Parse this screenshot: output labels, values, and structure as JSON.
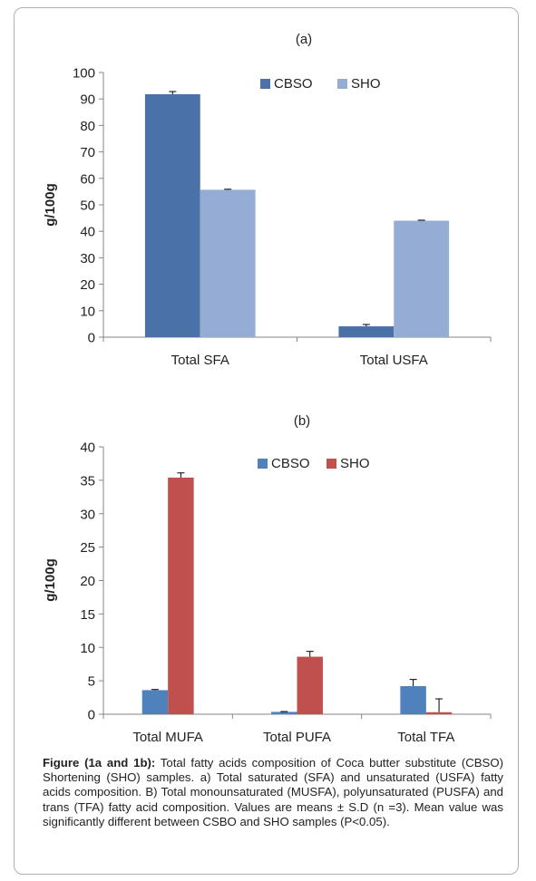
{
  "chart_data": [
    {
      "type": "bar",
      "title": "(a)",
      "ylabel": "g/100g",
      "xlabel": "",
      "ylim": [
        0,
        100
      ],
      "yticks": [
        0,
        10,
        20,
        30,
        40,
        50,
        60,
        70,
        80,
        90,
        100
      ],
      "categories": [
        "Total SFA",
        "Total USFA"
      ],
      "series": [
        {
          "name": "CBSO",
          "color": "#4a72a8",
          "values": [
            91.8,
            4.1
          ],
          "errors": [
            1.0,
            0.7
          ]
        },
        {
          "name": "SHO",
          "color": "#95acd4",
          "values": [
            55.7,
            44.0
          ],
          "errors": [
            0.2,
            0.2
          ]
        }
      ],
      "legend_position": "top-right",
      "grid": false
    },
    {
      "type": "bar",
      "title": "(b)",
      "ylabel": "g/100g",
      "xlabel": "",
      "ylim": [
        0,
        40
      ],
      "yticks": [
        0,
        5,
        10,
        15,
        20,
        25,
        30,
        35,
        40
      ],
      "categories": [
        "Total MUFA",
        "Total PUFA",
        "Total TFA"
      ],
      "series": [
        {
          "name": "CBSO",
          "color": "#4f81bd",
          "values": [
            3.6,
            0.35,
            4.2
          ],
          "errors": [
            0.1,
            0.05,
            1.0
          ]
        },
        {
          "name": "SHO",
          "color": "#c0504d",
          "values": [
            35.4,
            8.6,
            0.3
          ],
          "errors": [
            0.7,
            0.8,
            2.0
          ]
        }
      ],
      "legend_position": "top-right",
      "grid": false
    }
  ],
  "caption": {
    "bold": "Figure (1a and 1b):",
    "text": " Total fatty acids composition of Coca butter substitute (CBSO) Shortening (SHO) samples. a) Total saturated (SFA) and unsaturated (USFA) fatty acids composition. B) Total monounsaturated (MUSFA), polyunsaturated (PUSFA) and trans (TFA) fatty acid composition. Values are means ± S.D (n =3). Mean value was significantly different between CSBO and SHO samples (P<0.05)."
  }
}
